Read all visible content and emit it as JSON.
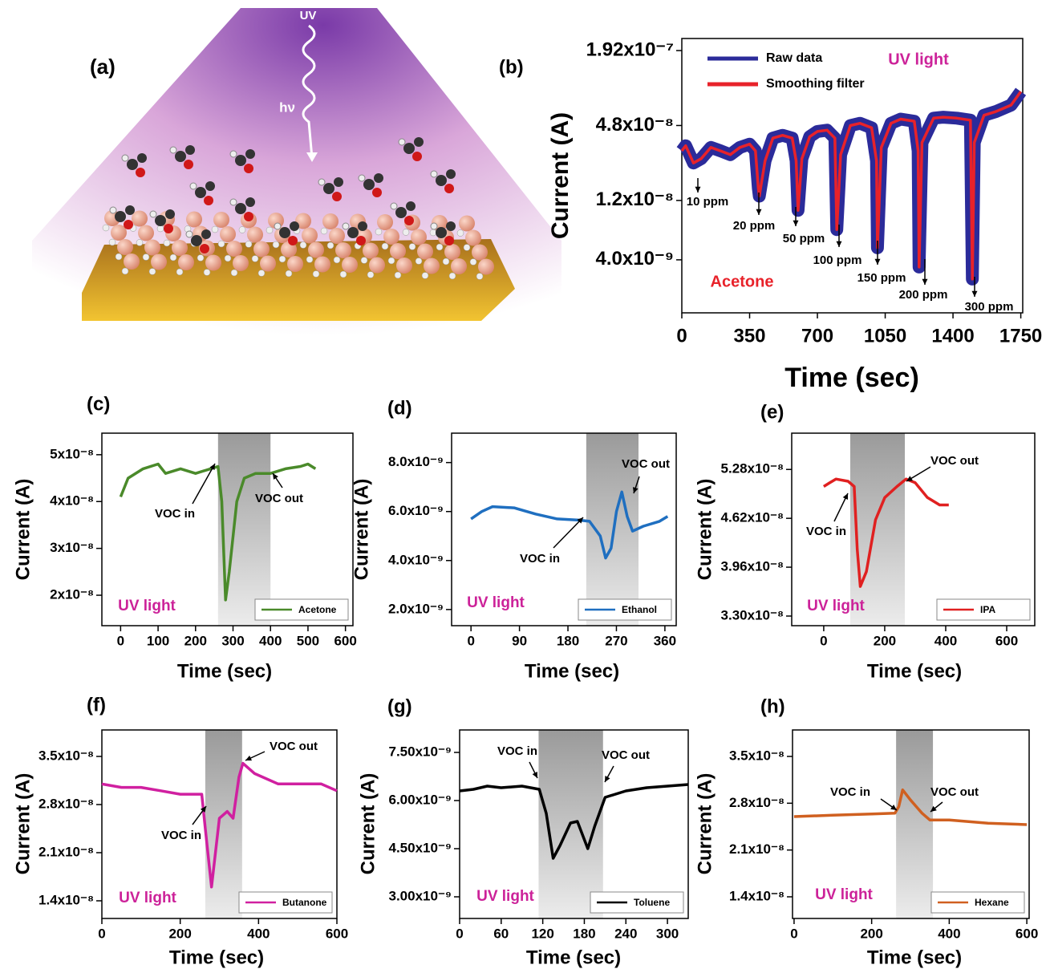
{
  "panel_a": {
    "label": "(a)",
    "uv": "UV",
    "hv": "hν"
  },
  "chart_data": [
    {
      "type": "line",
      "panel": "(b)",
      "log_y": true,
      "xlabel": "Time (sec)",
      "ylabel": "Current (A)",
      "xlim": [
        0,
        1760
      ],
      "ylim": [
        1.5e-09,
        2.4e-07
      ],
      "xticks": [
        0,
        350,
        700,
        1050,
        1400,
        1750
      ],
      "yticks": [
        {
          "value": 4e-09,
          "label": "4.0x10⁻⁹"
        },
        {
          "value": 1.2e-08,
          "label": "1.2x10⁻⁸"
        },
        {
          "value": 4.8e-08,
          "label": "4.8x10⁻⁸"
        },
        {
          "value": 1.92e-07,
          "label": "1.92x10⁻⁷"
        }
      ],
      "x": [
        0,
        20,
        60,
        100,
        150,
        200,
        250,
        300,
        350,
        380,
        395,
        400,
        430,
        470,
        520,
        570,
        590,
        600,
        620,
        660,
        700,
        750,
        790,
        800,
        820,
        870,
        920,
        980,
        1005,
        1010,
        1030,
        1080,
        1130,
        1200,
        1220,
        1225,
        1240,
        1300,
        1350,
        1420,
        1490,
        1500,
        1510,
        1560,
        1620,
        1700,
        1750
      ],
      "series": [
        {
          "name": "Raw data",
          "color": "#2b2b9a",
          "values": [
            3e-08,
            3.3e-08,
            2.4e-08,
            2.6e-08,
            3.2e-08,
            3e-08,
            2.8e-08,
            3.2e-08,
            3.4e-08,
            3e-08,
            1.5e-08,
            1.3e-08,
            2.5e-08,
            3.8e-08,
            4e-08,
            3.8e-08,
            2.5e-08,
            1e-08,
            2.6e-08,
            3.9e-08,
            4.3e-08,
            4.4e-08,
            3.8e-08,
            7e-09,
            2.8e-08,
            4.8e-08,
            5e-08,
            4.6e-08,
            2.5e-08,
            5e-09,
            3.2e-08,
            5e-08,
            5.4e-08,
            5.2e-08,
            3e-08,
            3.5e-09,
            3.5e-08,
            5.5e-08,
            5.6e-08,
            5.5e-08,
            5.3e-08,
            2.8e-09,
            3.5e-08,
            5.8e-08,
            6.2e-08,
            7e-08,
            9e-08
          ]
        },
        {
          "name": "Smoothing filter",
          "color": "#e8222a",
          "values": [
            3e-08,
            3.3e-08,
            2.4e-08,
            2.6e-08,
            3.2e-08,
            3e-08,
            2.8e-08,
            3.2e-08,
            3.4e-08,
            3e-08,
            1.5e-08,
            1.3e-08,
            2.5e-08,
            3.8e-08,
            4e-08,
            3.8e-08,
            2.5e-08,
            1e-08,
            2.6e-08,
            3.9e-08,
            4.3e-08,
            4.4e-08,
            3.8e-08,
            7e-09,
            2.8e-08,
            4.8e-08,
            5e-08,
            4.6e-08,
            2.5e-08,
            5e-09,
            3.2e-08,
            5e-08,
            5.4e-08,
            5.2e-08,
            3e-08,
            3.5e-09,
            3.5e-08,
            5.5e-08,
            5.6e-08,
            5.5e-08,
            5.3e-08,
            2.8e-09,
            3.5e-08,
            5.8e-08,
            6.2e-08,
            7e-08,
            9e-08
          ]
        }
      ],
      "annotations": [
        "UV light",
        "Acetone",
        "10 ppm",
        "20 ppm",
        "50 ppm",
        "100 ppm",
        "150 ppm",
        "200 ppm",
        "300 ppm"
      ]
    },
    {
      "type": "line",
      "panel": "(c)",
      "xlabel": "Time (sec)",
      "ylabel": "Current (A)",
      "xlim": [
        -50,
        620
      ],
      "ylim": [
        1.35e-08,
        5.46e-08
      ],
      "xticks": [
        0,
        100,
        200,
        300,
        400,
        500,
        600
      ],
      "yticks": [
        {
          "value": 2e-08,
          "label": "2x10⁻⁸"
        },
        {
          "value": 3e-08,
          "label": "3x10⁻⁸"
        },
        {
          "value": 4e-08,
          "label": "4x10⁻⁸"
        },
        {
          "value": 5e-08,
          "label": "5x10⁻⁸"
        }
      ],
      "shade": [
        260,
        400
      ],
      "x": [
        0,
        20,
        60,
        100,
        120,
        160,
        200,
        240,
        260,
        270,
        280,
        290,
        310,
        330,
        360,
        400,
        440,
        480,
        500,
        520
      ],
      "series": [
        {
          "name": "Acetone",
          "color": "#4a8a2a",
          "values": [
            4.1e-08,
            4.5e-08,
            4.7e-08,
            4.8e-08,
            4.6e-08,
            4.7e-08,
            4.6e-08,
            4.7e-08,
            4.75e-08,
            4e-08,
            1.9e-08,
            2.5e-08,
            4e-08,
            4.5e-08,
            4.6e-08,
            4.6e-08,
            4.7e-08,
            4.75e-08,
            4.8e-08,
            4.7e-08
          ]
        }
      ],
      "annotations": [
        "UV light",
        "VOC in",
        "VOC out"
      ]
    },
    {
      "type": "line",
      "panel": "(d)",
      "xlabel": "Time (sec)",
      "ylabel": "Current (A)",
      "xlim": [
        -36,
        381
      ],
      "ylim": [
        1.34e-09,
        9.2e-09
      ],
      "xticks": [
        0,
        90,
        180,
        270,
        360
      ],
      "yticks": [
        {
          "value": 2e-09,
          "label": "2.0x10⁻⁹"
        },
        {
          "value": 4e-09,
          "label": "4.0x10⁻⁹"
        },
        {
          "value": 6e-09,
          "label": "6.0x10⁻⁹"
        },
        {
          "value": 8e-09,
          "label": "8.0x10⁻⁹"
        }
      ],
      "shade": [
        214,
        311
      ],
      "x": [
        0,
        20,
        40,
        80,
        120,
        160,
        200,
        220,
        240,
        250,
        260,
        270,
        280,
        290,
        300,
        320,
        350,
        365
      ],
      "series": [
        {
          "name": "Ethanol",
          "color": "#1f6fc0",
          "values": [
            5.7e-09,
            6e-09,
            6.2e-09,
            6.15e-09,
            5.9e-09,
            5.7e-09,
            5.65e-09,
            5.6e-09,
            5e-09,
            4.1e-09,
            4.5e-09,
            6e-09,
            6.8e-09,
            5.8e-09,
            5.2e-09,
            5.4e-09,
            5.6e-09,
            5.8e-09
          ]
        }
      ],
      "annotations": [
        "UV light",
        "VOC in",
        "VOC out"
      ]
    },
    {
      "type": "line",
      "panel": "(e)",
      "xlabel": "Time (sec)",
      "ylabel": "Current (A)",
      "xlim": [
        -105,
        692
      ],
      "ylim": [
        3.17e-08,
        5.77e-08
      ],
      "xticks": [
        0,
        200,
        400,
        600
      ],
      "yticks": [
        {
          "value": 3.3e-08,
          "label": "3.30x10⁻⁸"
        },
        {
          "value": 3.96e-08,
          "label": "3.96x10⁻⁸"
        },
        {
          "value": 4.62e-08,
          "label": "4.62x10⁻⁸"
        },
        {
          "value": 5.28e-08,
          "label": "5.28x10⁻⁸"
        }
      ],
      "shade": [
        87,
        266
      ],
      "x": [
        0,
        20,
        40,
        80,
        100,
        110,
        120,
        140,
        170,
        200,
        240,
        270,
        300,
        340,
        380,
        410
      ],
      "series": [
        {
          "name": "IPA",
          "color": "#e02020",
          "values": [
            5.05e-08,
            5.1e-08,
            5.15e-08,
            5.12e-08,
            5.05e-08,
            4.2e-08,
            3.7e-08,
            3.9e-08,
            4.6e-08,
            4.9e-08,
            5.05e-08,
            5.15e-08,
            5.1e-08,
            4.9e-08,
            4.8e-08,
            4.8e-08
          ]
        }
      ],
      "annotations": [
        "UV light",
        "VOC in",
        "VOC out"
      ]
    },
    {
      "type": "line",
      "panel": "(f)",
      "xlabel": "Time (sec)",
      "ylabel": "Current (A)",
      "xlim": [
        0,
        600
      ],
      "ylim": [
        1.143e-08,
        3.885e-08
      ],
      "xticks": [
        0,
        200,
        400,
        600
      ],
      "yticks": [
        {
          "value": 1.4e-08,
          "label": "1.4x10⁻⁸"
        },
        {
          "value": 2.1e-08,
          "label": "2.1x10⁻⁸"
        },
        {
          "value": 2.8e-08,
          "label": "2.8x10⁻⁸"
        },
        {
          "value": 3.5e-08,
          "label": "3.5x10⁻⁸"
        }
      ],
      "shade": [
        264,
        358
      ],
      "x": [
        0,
        50,
        100,
        150,
        200,
        255,
        265,
        280,
        300,
        320,
        335,
        350,
        360,
        390,
        450,
        500,
        560,
        600
      ],
      "series": [
        {
          "name": "Butanone",
          "color": "#d020a0",
          "values": [
            3.1e-08,
            3.05e-08,
            3.05e-08,
            3e-08,
            2.95e-08,
            2.95e-08,
            2.4e-08,
            1.6e-08,
            2.6e-08,
            2.7e-08,
            2.6e-08,
            3.2e-08,
            3.4e-08,
            3.25e-08,
            3.1e-08,
            3.1e-08,
            3.1e-08,
            3e-08
          ]
        }
      ],
      "annotations": [
        "UV light",
        "VOC in",
        "VOC out"
      ]
    },
    {
      "type": "line",
      "panel": "(g)",
      "xlabel": "Time (sec)",
      "ylabel": "Current (A)",
      "xlim": [
        0,
        330
      ],
      "ylim": [
        2.325e-09,
        8.2e-09
      ],
      "xticks": [
        0,
        60,
        120,
        180,
        240,
        300
      ],
      "yticks": [
        {
          "value": 3e-09,
          "label": "3.00x10⁻⁹"
        },
        {
          "value": 4.5e-09,
          "label": "4.50x10⁻⁹"
        },
        {
          "value": 6e-09,
          "label": "6.00x10⁻⁹"
        },
        {
          "value": 7.5e-09,
          "label": "7.50x10⁻⁹"
        }
      ],
      "shade": [
        114,
        207
      ],
      "x": [
        0,
        20,
        40,
        60,
        90,
        115,
        125,
        135,
        145,
        160,
        170,
        185,
        195,
        210,
        240,
        270,
        300,
        330
      ],
      "series": [
        {
          "name": "Toluene",
          "color": "#000000",
          "values": [
            6.3e-09,
            6.35e-09,
            6.45e-09,
            6.4e-09,
            6.45e-09,
            6.35e-09,
            5.6e-09,
            4.2e-09,
            4.6e-09,
            5.3e-09,
            5.35e-09,
            4.5e-09,
            5.2e-09,
            6.1e-09,
            6.3e-09,
            6.4e-09,
            6.45e-09,
            6.5e-09
          ]
        }
      ],
      "annotations": [
        "UV light",
        "VOC in",
        "VOC out"
      ]
    },
    {
      "type": "line",
      "panel": "(h)",
      "xlabel": "Time (sec)",
      "ylabel": "Current (A)",
      "xlim": [
        -4,
        606
      ],
      "ylim": [
        1.076e-08,
        3.896e-08
      ],
      "xticks": [
        0,
        200,
        400,
        600
      ],
      "yticks": [
        {
          "value": 1.4e-08,
          "label": "1.4x10⁻⁸"
        },
        {
          "value": 2.1e-08,
          "label": "2.1x10⁻⁸"
        },
        {
          "value": 2.8e-08,
          "label": "2.8x10⁻⁸"
        },
        {
          "value": 3.5e-08,
          "label": "3.5x10⁻⁸"
        }
      ],
      "shade": [
        263,
        358
      ],
      "x": [
        0,
        100,
        200,
        260,
        270,
        280,
        300,
        330,
        350,
        400,
        500,
        600
      ],
      "series": [
        {
          "name": "Hexane",
          "color": "#d06020",
          "values": [
            2.6e-08,
            2.62e-08,
            2.64e-08,
            2.65e-08,
            2.75e-08,
            3e-08,
            2.85e-08,
            2.65e-08,
            2.55e-08,
            2.55e-08,
            2.5e-08,
            2.48e-08
          ]
        }
      ],
      "annotations": [
        "UV light",
        "VOC in",
        "VOC out"
      ]
    }
  ]
}
